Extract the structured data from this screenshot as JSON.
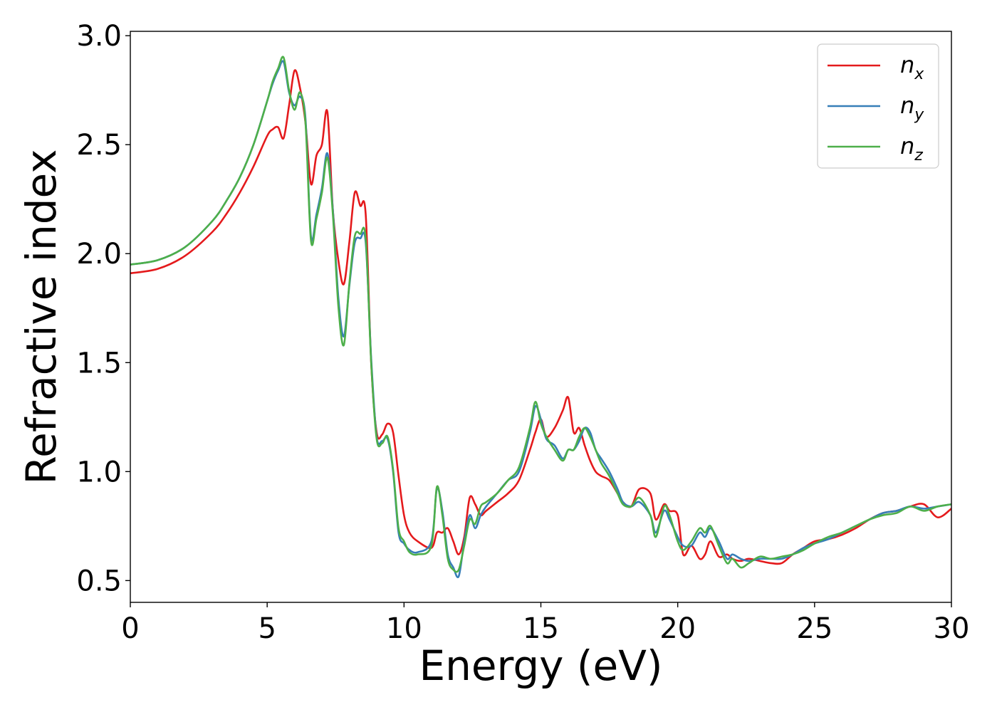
{
  "chart_data": {
    "type": "line",
    "title": "",
    "xlabel": "Energy (eV)",
    "ylabel": "Refractive index",
    "xlim": [
      0,
      30
    ],
    "ylim": [
      0.4,
      3.02
    ],
    "xticks": [
      0,
      5,
      10,
      15,
      20,
      25,
      30
    ],
    "xtick_labels": [
      "0",
      "5",
      "10",
      "15",
      "20",
      "25",
      "30"
    ],
    "yticks": [
      0.5,
      1.0,
      1.5,
      2.0,
      2.5,
      3.0
    ],
    "ytick_labels": [
      "0.5",
      "1.0",
      "1.5",
      "2.0",
      "2.5",
      "3.0"
    ],
    "grid": false,
    "legend_position": "top-right",
    "series": [
      {
        "name": "n",
        "subscript": "x",
        "color": "#e41a1c",
        "x": [
          0,
          1,
          2,
          3,
          3.5,
          4,
          4.5,
          5,
          5.2,
          5.4,
          5.6,
          5.8,
          6.0,
          6.2,
          6.4,
          6.6,
          6.8,
          7.0,
          7.2,
          7.4,
          7.6,
          7.8,
          8.0,
          8.2,
          8.4,
          8.6,
          8.8,
          9.0,
          9.2,
          9.4,
          9.6,
          9.8,
          10.0,
          10.2,
          10.5,
          11.0,
          11.2,
          11.4,
          11.6,
          11.8,
          12.0,
          12.2,
          12.4,
          12.6,
          12.8,
          13.0,
          13.4,
          13.8,
          14.2,
          14.6,
          14.8,
          15.0,
          15.2,
          15.5,
          15.8,
          16.0,
          16.2,
          16.4,
          16.6,
          16.8,
          17.0,
          17.2,
          17.5,
          17.8,
          18.0,
          18.3,
          18.6,
          19.0,
          19.2,
          19.5,
          19.7,
          20.0,
          20.2,
          20.5,
          20.8,
          21.0,
          21.2,
          21.5,
          21.8,
          22.0,
          22.3,
          22.6,
          23.0,
          23.4,
          23.8,
          24.2,
          24.6,
          25.0,
          25.5,
          26.0,
          26.5,
          27.0,
          27.5,
          28.0,
          28.5,
          29.0,
          29.5,
          30.0
        ],
        "values": [
          1.91,
          1.93,
          1.99,
          2.1,
          2.18,
          2.28,
          2.4,
          2.54,
          2.57,
          2.58,
          2.53,
          2.68,
          2.84,
          2.76,
          2.6,
          2.32,
          2.45,
          2.5,
          2.65,
          2.2,
          1.97,
          1.86,
          2.05,
          2.28,
          2.22,
          2.18,
          1.5,
          1.18,
          1.17,
          1.22,
          1.18,
          0.98,
          0.8,
          0.72,
          0.68,
          0.65,
          0.72,
          0.72,
          0.74,
          0.68,
          0.62,
          0.7,
          0.88,
          0.85,
          0.8,
          0.82,
          0.86,
          0.9,
          0.96,
          1.1,
          1.18,
          1.24,
          1.16,
          1.2,
          1.28,
          1.34,
          1.18,
          1.2,
          1.12,
          1.05,
          1.0,
          0.98,
          0.96,
          0.9,
          0.86,
          0.84,
          0.92,
          0.9,
          0.78,
          0.85,
          0.82,
          0.8,
          0.62,
          0.66,
          0.6,
          0.62,
          0.68,
          0.61,
          0.62,
          0.6,
          0.59,
          0.6,
          0.59,
          0.58,
          0.58,
          0.62,
          0.65,
          0.68,
          0.69,
          0.71,
          0.74,
          0.78,
          0.81,
          0.82,
          0.84,
          0.85,
          0.79,
          0.83
        ]
      },
      {
        "name": "n",
        "subscript": "y",
        "color": "#377eb8",
        "x": [
          0,
          1,
          2,
          3,
          3.5,
          4,
          4.5,
          5,
          5.2,
          5.4,
          5.6,
          5.8,
          6.0,
          6.2,
          6.4,
          6.6,
          6.8,
          7.0,
          7.2,
          7.4,
          7.6,
          7.8,
          8.0,
          8.2,
          8.4,
          8.6,
          8.8,
          9.0,
          9.2,
          9.4,
          9.6,
          9.8,
          10.0,
          10.2,
          10.5,
          11.0,
          11.2,
          11.4,
          11.6,
          11.8,
          12.0,
          12.2,
          12.4,
          12.6,
          12.8,
          13.0,
          13.4,
          13.8,
          14.2,
          14.6,
          14.8,
          15.0,
          15.2,
          15.5,
          15.8,
          16.0,
          16.2,
          16.4,
          16.6,
          16.8,
          17.0,
          17.2,
          17.5,
          17.8,
          18.0,
          18.3,
          18.6,
          19.0,
          19.2,
          19.5,
          19.7,
          20.0,
          20.2,
          20.5,
          20.8,
          21.0,
          21.2,
          21.5,
          21.8,
          22.0,
          22.3,
          22.6,
          23.0,
          23.4,
          23.8,
          24.2,
          24.6,
          25.0,
          25.5,
          26.0,
          26.5,
          27.0,
          27.5,
          28.0,
          28.5,
          29.0,
          29.5,
          30.0
        ],
        "values": [
          1.95,
          1.97,
          2.03,
          2.15,
          2.24,
          2.35,
          2.5,
          2.7,
          2.78,
          2.84,
          2.88,
          2.74,
          2.68,
          2.72,
          2.62,
          2.08,
          2.18,
          2.3,
          2.46,
          2.2,
          1.8,
          1.62,
          1.85,
          2.05,
          2.07,
          2.05,
          1.52,
          1.16,
          1.14,
          1.15,
          1.0,
          0.72,
          0.67,
          0.64,
          0.63,
          0.68,
          0.92,
          0.82,
          0.62,
          0.56,
          0.52,
          0.68,
          0.8,
          0.74,
          0.8,
          0.84,
          0.9,
          0.96,
          1.0,
          1.18,
          1.3,
          1.24,
          1.15,
          1.12,
          1.06,
          1.1,
          1.1,
          1.14,
          1.2,
          1.18,
          1.1,
          1.06,
          1.0,
          0.92,
          0.86,
          0.84,
          0.86,
          0.8,
          0.72,
          0.82,
          0.78,
          0.7,
          0.66,
          0.66,
          0.72,
          0.7,
          0.74,
          0.68,
          0.6,
          0.62,
          0.6,
          0.59,
          0.6,
          0.6,
          0.6,
          0.62,
          0.65,
          0.67,
          0.69,
          0.72,
          0.75,
          0.78,
          0.81,
          0.82,
          0.84,
          0.83,
          0.84,
          0.85
        ]
      },
      {
        "name": "n",
        "subscript": "z",
        "color": "#4daf4a",
        "x": [
          0,
          1,
          2,
          3,
          3.5,
          4,
          4.5,
          5,
          5.2,
          5.4,
          5.6,
          5.8,
          6.0,
          6.2,
          6.4,
          6.6,
          6.8,
          7.0,
          7.2,
          7.4,
          7.6,
          7.8,
          8.0,
          8.2,
          8.4,
          8.6,
          8.8,
          9.0,
          9.2,
          9.4,
          9.6,
          9.8,
          10.0,
          10.2,
          10.5,
          11.0,
          11.2,
          11.4,
          11.6,
          11.8,
          12.0,
          12.2,
          12.4,
          12.6,
          12.8,
          13.0,
          13.4,
          13.8,
          14.2,
          14.6,
          14.8,
          15.0,
          15.2,
          15.5,
          15.8,
          16.0,
          16.2,
          16.4,
          16.6,
          16.8,
          17.0,
          17.2,
          17.5,
          17.8,
          18.0,
          18.3,
          18.6,
          19.0,
          19.2,
          19.5,
          19.7,
          20.0,
          20.2,
          20.5,
          20.8,
          21.0,
          21.2,
          21.5,
          21.8,
          22.0,
          22.3,
          22.6,
          23.0,
          23.4,
          23.8,
          24.2,
          24.6,
          25.0,
          25.5,
          26.0,
          26.5,
          27.0,
          27.5,
          28.0,
          28.5,
          29.0,
          29.5,
          30.0
        ],
        "values": [
          1.95,
          1.97,
          2.03,
          2.15,
          2.24,
          2.35,
          2.5,
          2.7,
          2.79,
          2.85,
          2.9,
          2.75,
          2.66,
          2.74,
          2.6,
          2.06,
          2.16,
          2.28,
          2.44,
          2.18,
          1.76,
          1.58,
          1.86,
          2.08,
          2.09,
          2.07,
          1.5,
          1.15,
          1.13,
          1.16,
          1.01,
          0.74,
          0.68,
          0.63,
          0.62,
          0.66,
          0.93,
          0.8,
          0.6,
          0.55,
          0.55,
          0.66,
          0.78,
          0.76,
          0.84,
          0.86,
          0.9,
          0.96,
          1.02,
          1.2,
          1.32,
          1.22,
          1.16,
          1.1,
          1.05,
          1.1,
          1.1,
          1.16,
          1.2,
          1.16,
          1.1,
          1.04,
          0.98,
          0.9,
          0.85,
          0.84,
          0.88,
          0.8,
          0.7,
          0.84,
          0.8,
          0.68,
          0.64,
          0.68,
          0.74,
          0.72,
          0.75,
          0.66,
          0.58,
          0.6,
          0.56,
          0.58,
          0.61,
          0.6,
          0.61,
          0.62,
          0.64,
          0.67,
          0.7,
          0.72,
          0.75,
          0.78,
          0.8,
          0.81,
          0.84,
          0.82,
          0.84,
          0.85
        ]
      }
    ]
  }
}
